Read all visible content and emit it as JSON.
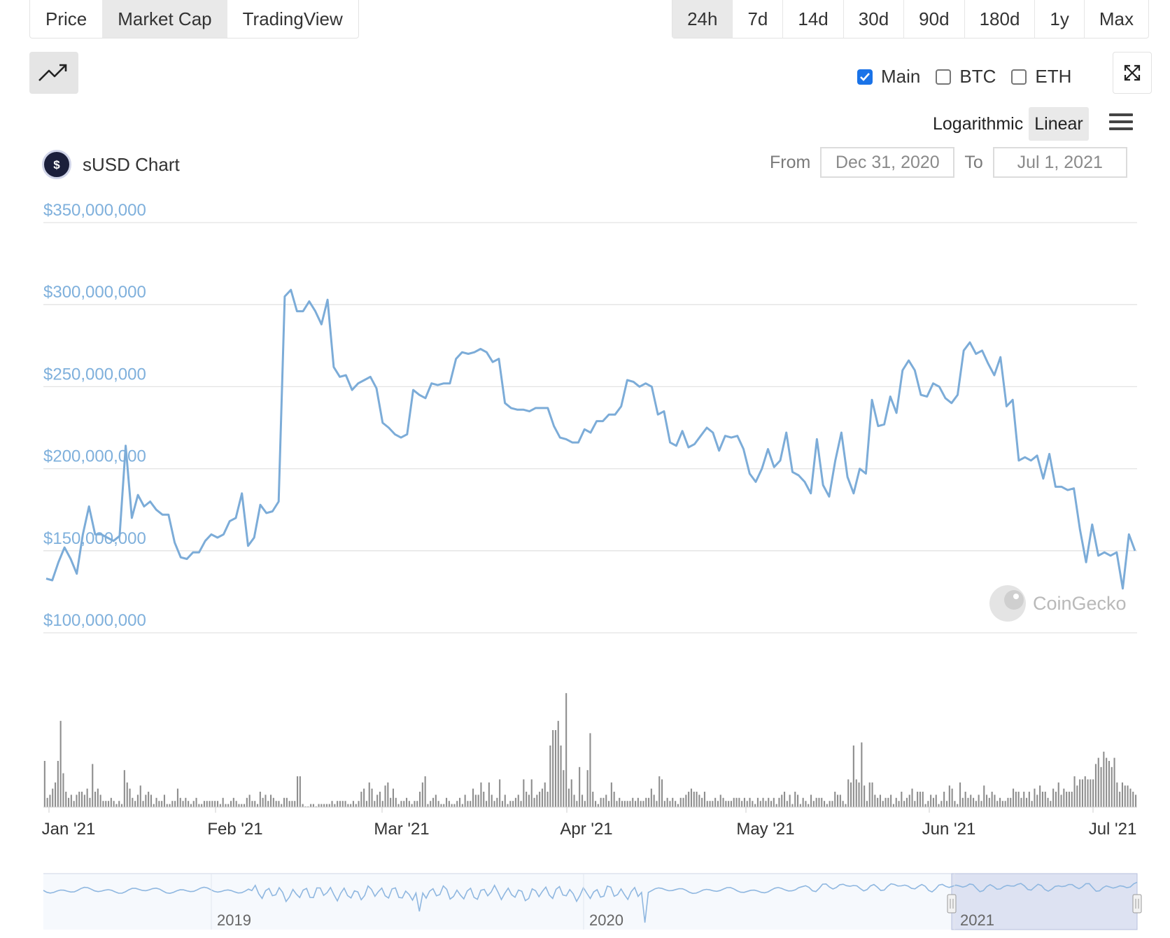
{
  "tabs": [
    {
      "label": "Price",
      "active": false
    },
    {
      "label": "Market Cap",
      "active": true
    },
    {
      "label": "TradingView",
      "active": false
    }
  ],
  "ranges": [
    {
      "label": "24h",
      "active": true
    },
    {
      "label": "7d",
      "active": false
    },
    {
      "label": "14d",
      "active": false
    },
    {
      "label": "30d",
      "active": false
    },
    {
      "label": "90d",
      "active": false
    },
    {
      "label": "180d",
      "active": false
    },
    {
      "label": "1y",
      "active": false
    },
    {
      "label": "Max",
      "active": false
    }
  ],
  "series_toggles": [
    {
      "label": "Main",
      "checked": true
    },
    {
      "label": "BTC",
      "checked": false
    },
    {
      "label": "ETH",
      "checked": false
    }
  ],
  "scale": {
    "log_label": "Logarithmic",
    "linear_label": "Linear",
    "active": "Linear"
  },
  "chart_title": "sUSD Chart",
  "date_range": {
    "from_label": "From",
    "from": "Dec 31, 2020",
    "to_label": "To",
    "to": "Jul 1, 2021"
  },
  "watermark": "CoinGecko",
  "colors": {
    "line": "#7cacd8",
    "axis_label": "#7fb0dc",
    "volume": "#8e8e8e",
    "navigator_fill": "#dde2f2"
  },
  "chart_data": {
    "type": "line",
    "title": "sUSD Chart",
    "ylim": [
      100000000,
      350000000
    ],
    "y_ticks": [
      "$350,000,000",
      "$300,000,000",
      "$250,000,000",
      "$200,000,000",
      "$150,000,000",
      "$100,000,000"
    ],
    "x_ticks": [
      "Jan '21",
      "Feb '21",
      "Mar '21",
      "Apr '21",
      "May '21",
      "Jun '21",
      "Jul '21"
    ],
    "grid": true,
    "series": [
      {
        "type": "line",
        "values": [
          133,
          132,
          143,
          152,
          145,
          136,
          160,
          177,
          160,
          160,
          158,
          156,
          159,
          214,
          170,
          184,
          177,
          180,
          175,
          172,
          172,
          155,
          146,
          145,
          149,
          149,
          156,
          160,
          158,
          160,
          168,
          170,
          185,
          153,
          158,
          178,
          173,
          174,
          180,
          305,
          309,
          296,
          296,
          302,
          296,
          288,
          303,
          262,
          256,
          257,
          248,
          252,
          254,
          256,
          249,
          228,
          225,
          221,
          219,
          221,
          248,
          245,
          243,
          252,
          251,
          252,
          252,
          267,
          271,
          270,
          271,
          273,
          271,
          265,
          267,
          240,
          237,
          236,
          236,
          235,
          237,
          237,
          237,
          226,
          219,
          218,
          216,
          216,
          224,
          222,
          229,
          229,
          233,
          233,
          238,
          254,
          253,
          250,
          252,
          250,
          233,
          235,
          216,
          214,
          223,
          213,
          215,
          220,
          225,
          222,
          211,
          220,
          219,
          220,
          212,
          197,
          192,
          200,
          212,
          201,
          205,
          222,
          198,
          196,
          192,
          185,
          218,
          190,
          183,
          205,
          222,
          195,
          185,
          200,
          197,
          242,
          226,
          227,
          244,
          234,
          260,
          266,
          260,
          245,
          244,
          252,
          250,
          243,
          240,
          245,
          272,
          277,
          270,
          272,
          264,
          257,
          268,
          238,
          242,
          205,
          207,
          205,
          208,
          194,
          209,
          189,
          189,
          187,
          188,
          163,
          143,
          166,
          147,
          149,
          147,
          149,
          127,
          160,
          150
        ]
      },
      {
        "type": "bar",
        "name": "volume",
        "values": [
          15,
          3,
          4,
          6,
          8,
          15,
          28,
          11,
          5,
          3,
          4,
          2,
          4,
          5,
          5,
          4,
          6,
          3,
          14,
          5,
          6,
          4,
          2,
          2,
          2,
          3,
          2,
          1,
          2,
          1,
          12,
          8,
          6,
          3,
          2,
          4,
          7,
          2,
          4,
          5,
          4,
          1,
          3,
          2,
          2,
          4,
          1,
          1,
          2,
          2,
          6,
          3,
          2,
          3,
          2,
          1,
          2,
          3,
          1,
          1,
          2,
          2,
          2,
          2,
          2,
          2,
          1,
          3,
          1,
          1,
          2,
          3,
          2,
          1,
          1,
          1,
          3,
          4,
          2,
          2,
          1,
          5,
          3,
          4,
          2,
          4,
          3,
          2,
          2,
          1,
          3,
          3,
          2,
          2,
          2,
          10,
          10,
          1,
          0,
          0,
          1,
          1,
          0,
          1,
          1,
          1,
          1,
          1,
          2,
          1,
          2,
          2,
          2,
          2,
          1,
          1,
          2,
          1,
          2,
          5,
          6,
          2,
          8,
          6,
          2,
          4,
          5,
          2,
          7,
          8,
          3,
          6,
          3,
          1,
          2,
          2,
          3,
          2,
          1,
          2,
          2,
          5,
          8,
          10,
          1,
          2,
          3,
          4,
          2,
          1,
          1,
          3,
          2,
          1,
          1,
          2,
          3,
          1,
          4,
          2,
          2,
          6,
          4,
          4,
          8,
          5,
          2,
          8,
          4,
          2,
          3,
          9,
          2,
          4,
          1,
          2,
          2,
          3,
          4,
          2,
          9,
          5,
          4,
          9,
          3,
          4,
          5,
          6,
          8,
          5,
          20,
          25,
          25,
          28,
          20,
          12,
          37,
          6,
          9,
          4,
          2,
          13,
          4,
          2,
          12,
          24,
          5,
          2,
          1,
          3,
          3,
          4,
          2,
          8,
          5,
          2,
          3,
          2,
          2,
          2,
          2,
          3,
          2,
          3,
          2,
          2,
          3,
          3,
          6,
          4,
          2,
          10,
          9,
          2,
          3,
          2,
          3,
          2,
          1,
          3,
          3,
          4,
          5,
          6,
          5,
          5,
          4,
          3,
          5,
          2,
          2,
          2,
          3,
          2,
          4,
          3,
          2,
          2,
          2,
          3,
          3,
          3,
          2,
          3,
          2,
          3,
          2,
          1,
          3,
          2,
          3,
          2,
          3,
          2,
          3,
          1,
          3,
          4,
          5,
          2,
          4,
          1,
          5,
          4,
          1,
          3,
          2,
          1,
          4,
          2,
          3,
          3,
          3,
          2,
          1,
          2,
          2,
          5,
          4,
          4,
          2,
          1,
          9,
          8,
          20,
          9,
          8,
          21,
          7,
          2,
          8,
          8,
          4,
          3,
          4,
          2,
          3,
          3,
          4,
          1,
          3,
          2,
          5,
          2,
          3,
          4,
          6,
          2,
          5,
          5,
          5,
          1,
          2,
          4,
          3,
          4,
          1,
          2,
          5,
          2,
          7,
          6,
          2,
          1,
          8,
          3,
          5,
          3,
          4,
          3,
          2,
          4,
          2,
          7,
          4,
          3,
          5,
          4,
          2,
          3,
          2,
          2,
          3,
          3,
          6,
          5,
          5,
          3,
          5,
          3,
          5,
          2,
          6,
          4,
          7,
          5,
          5,
          3,
          2,
          6,
          5,
          8,
          4,
          6,
          5,
          5,
          5,
          10,
          7,
          9,
          9,
          10,
          9,
          9,
          9,
          14,
          16,
          13,
          18,
          16,
          15,
          13,
          16,
          8,
          5,
          8,
          7,
          7,
          6,
          5,
          4
        ]
      }
    ],
    "navigator": {
      "x_ticks": [
        "2019",
        "2020",
        "2021"
      ],
      "selected": "2021"
    }
  }
}
